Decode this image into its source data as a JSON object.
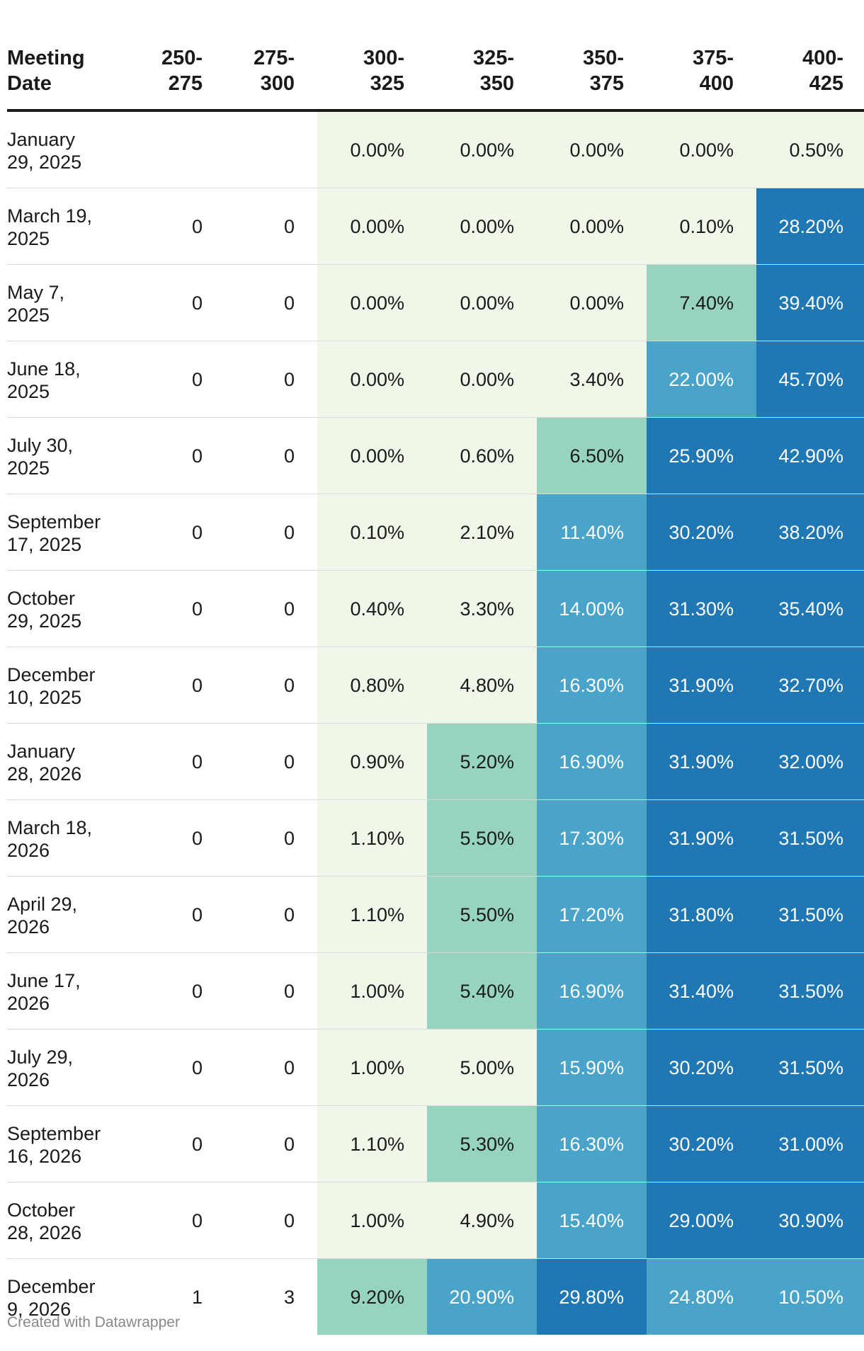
{
  "chart_data": {
    "type": "table",
    "columns": [
      "Meeting\nDate",
      "250-\n275",
      "275-\n300",
      "300-\n325",
      "325-\n350",
      "350-\n375",
      "375-\n400",
      "400-\n425"
    ],
    "rows": [
      {
        "date": "January\n29, 2025",
        "values": [
          "",
          "",
          "0.00%",
          "0.00%",
          "0.00%",
          "0.00%",
          "0.50%"
        ]
      },
      {
        "date": "March 19,\n2025",
        "values": [
          "0",
          "0",
          "0.00%",
          "0.00%",
          "0.00%",
          "0.10%",
          "28.20%"
        ]
      },
      {
        "date": "May 7,\n2025",
        "values": [
          "0",
          "0",
          "0.00%",
          "0.00%",
          "0.00%",
          "7.40%",
          "39.40%"
        ]
      },
      {
        "date": "June 18,\n2025",
        "values": [
          "0",
          "0",
          "0.00%",
          "0.00%",
          "3.40%",
          "22.00%",
          "45.70%"
        ]
      },
      {
        "date": "July 30,\n2025",
        "values": [
          "0",
          "0",
          "0.00%",
          "0.60%",
          "6.50%",
          "25.90%",
          "42.90%"
        ]
      },
      {
        "date": "September\n17, 2025",
        "values": [
          "0",
          "0",
          "0.10%",
          "2.10%",
          "11.40%",
          "30.20%",
          "38.20%"
        ]
      },
      {
        "date": "October\n29, 2025",
        "values": [
          "0",
          "0",
          "0.40%",
          "3.30%",
          "14.00%",
          "31.30%",
          "35.40%"
        ]
      },
      {
        "date": "December\n10, 2025",
        "values": [
          "0",
          "0",
          "0.80%",
          "4.80%",
          "16.30%",
          "31.90%",
          "32.70%"
        ]
      },
      {
        "date": "January\n28, 2026",
        "values": [
          "0",
          "0",
          "0.90%",
          "5.20%",
          "16.90%",
          "31.90%",
          "32.00%"
        ]
      },
      {
        "date": "March 18,\n2026",
        "values": [
          "0",
          "0",
          "1.10%",
          "5.50%",
          "17.30%",
          "31.90%",
          "31.50%"
        ]
      },
      {
        "date": "April 29,\n2026",
        "values": [
          "0",
          "0",
          "1.10%",
          "5.50%",
          "17.20%",
          "31.80%",
          "31.50%"
        ]
      },
      {
        "date": "June 17,\n2026",
        "values": [
          "0",
          "0",
          "1.00%",
          "5.40%",
          "16.90%",
          "31.40%",
          "31.50%"
        ]
      },
      {
        "date": "July 29,\n2026",
        "values": [
          "0",
          "0",
          "1.00%",
          "5.00%",
          "15.90%",
          "30.20%",
          "31.50%"
        ]
      },
      {
        "date": "September\n16, 2026",
        "values": [
          "0",
          "0",
          "1.10%",
          "5.30%",
          "16.30%",
          "30.20%",
          "31.00%"
        ]
      },
      {
        "date": "October\n28, 2026",
        "values": [
          "0",
          "0",
          "1.00%",
          "4.90%",
          "15.40%",
          "29.00%",
          "30.90%"
        ]
      },
      {
        "date": "December\n9, 2026",
        "values": [
          "1",
          "3",
          "9.20%",
          "20.90%",
          "29.80%",
          "24.80%",
          "10.50%"
        ]
      }
    ],
    "edge_column_colors": [
      "#2e4e8f",
      "#2e4e8f",
      "#1f77b4",
      "#1f77b4",
      "#1f77b4",
      "#4aa3c8",
      "#4aa3c8",
      "#4aa3c8",
      "#4aa3c8",
      "#4aa3c8",
      "#4aa3c8",
      "#4aa3c8",
      "#4aa3c8",
      "#4aa3c8",
      "#4aa3c8",
      "#eef7e8"
    ],
    "color_scale": [
      {
        "max": 5,
        "color": "#eef7e8",
        "text": "#1a1a1a"
      },
      {
        "max": 10,
        "color": "#96d4c0",
        "text": "#1a1a1a"
      },
      {
        "max": 25,
        "color": "#4aa3c8",
        "text": "#ffffff"
      },
      {
        "max": 100,
        "color": "#1f77b4",
        "text": "#ffffff"
      }
    ]
  },
  "footer": "Created with Datawrapper"
}
